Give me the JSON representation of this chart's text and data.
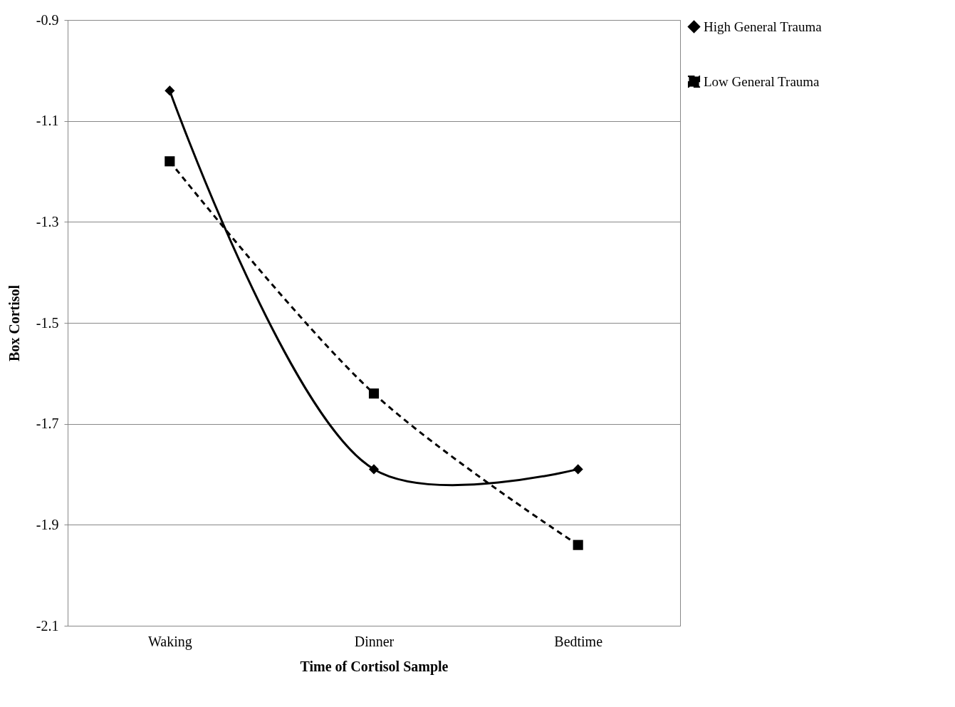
{
  "chart_data": {
    "type": "line",
    "xlabel": "Time of Cortisol Sample",
    "ylabel": "Box Cortisol",
    "categories": [
      "Waking",
      "Dinner",
      "Bedtime"
    ],
    "series": [
      {
        "name": "High General Trauma",
        "color": "#000000",
        "marker": "diamond",
        "line_style": "solid",
        "values": [
          -1.04,
          -1.79,
          -1.79
        ]
      },
      {
        "name": "Low General Trauma",
        "color": "#000000",
        "marker": "square",
        "line_style": "dashed",
        "values": [
          -1.18,
          -1.64,
          -1.94
        ]
      }
    ],
    "ylim": [
      -2.1,
      -0.9
    ],
    "yticks": [
      -2.1,
      -1.9,
      -1.7,
      -1.5,
      -1.3,
      -1.1,
      -0.9
    ],
    "grid": "y",
    "legend": "right"
  }
}
